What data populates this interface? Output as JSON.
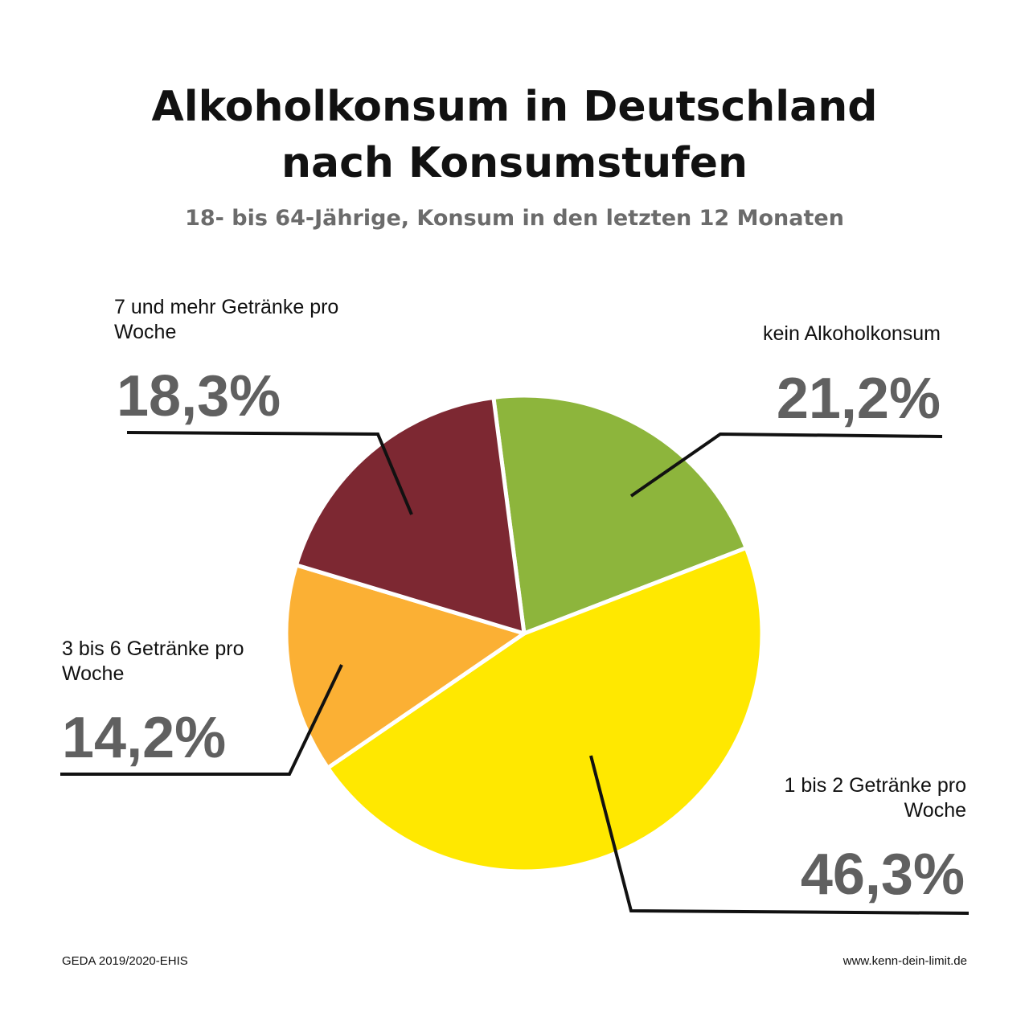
{
  "chart_data": {
    "type": "pie",
    "title": "Alkoholkonsum in Deutschland nach Konsumstufen",
    "subtitle": "18- bis 64-Jährige, Konsum in den letzten 12 Monaten",
    "categories": [
      "kein Alkoholkonsum",
      "1 bis 2 Getränke pro Woche",
      "3 bis 6 Getränke pro Woche",
      "7 und mehr Getränke pro Woche"
    ],
    "values": [
      21.2,
      46.3,
      14.2,
      18.3
    ],
    "value_labels": [
      "21,2%",
      "46,3%",
      "14,2%",
      "18,3%"
    ],
    "colors": [
      "#8db53c",
      "#ffe800",
      "#fbb034",
      "#7d2832"
    ],
    "source": "GEDA 2019/2020-EHIS",
    "website": "www.kenn-dein-limit.de"
  }
}
